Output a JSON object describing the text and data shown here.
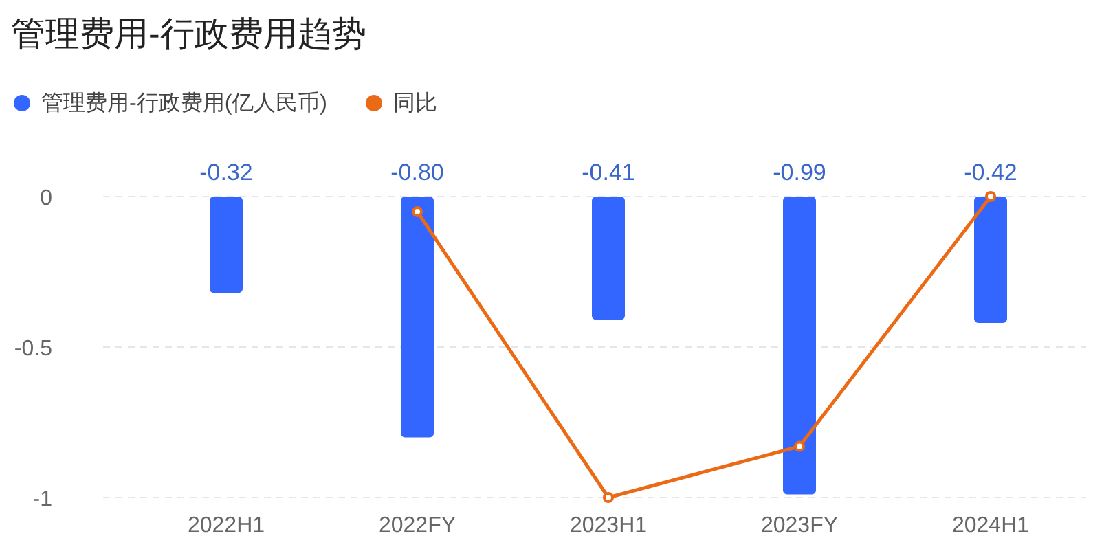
{
  "chart_data": {
    "type": "bar",
    "title": "管理费用-行政费用趋势",
    "categories": [
      "2022H1",
      "2022FY",
      "2023H1",
      "2023FY",
      "2024H1"
    ],
    "series": [
      {
        "name": "管理费用-行政费用(亿人民币)",
        "color": "#3366ff",
        "values": [
          -0.32,
          -0.8,
          -0.41,
          -0.99,
          -0.42
        ],
        "value_labels": [
          "-0.32",
          "-0.80",
          "-0.41",
          "-0.99",
          "-0.42"
        ]
      },
      {
        "name": "同比",
        "color": "#eb6a16",
        "type": "line",
        "values": [
          null,
          -0.05,
          -1.0,
          -0.83,
          0.0
        ]
      }
    ],
    "ylim": [
      -1,
      0
    ],
    "yticks": [
      0,
      -0.5,
      -1
    ],
    "grid": "y",
    "legend": "top left",
    "marker": "circle"
  }
}
